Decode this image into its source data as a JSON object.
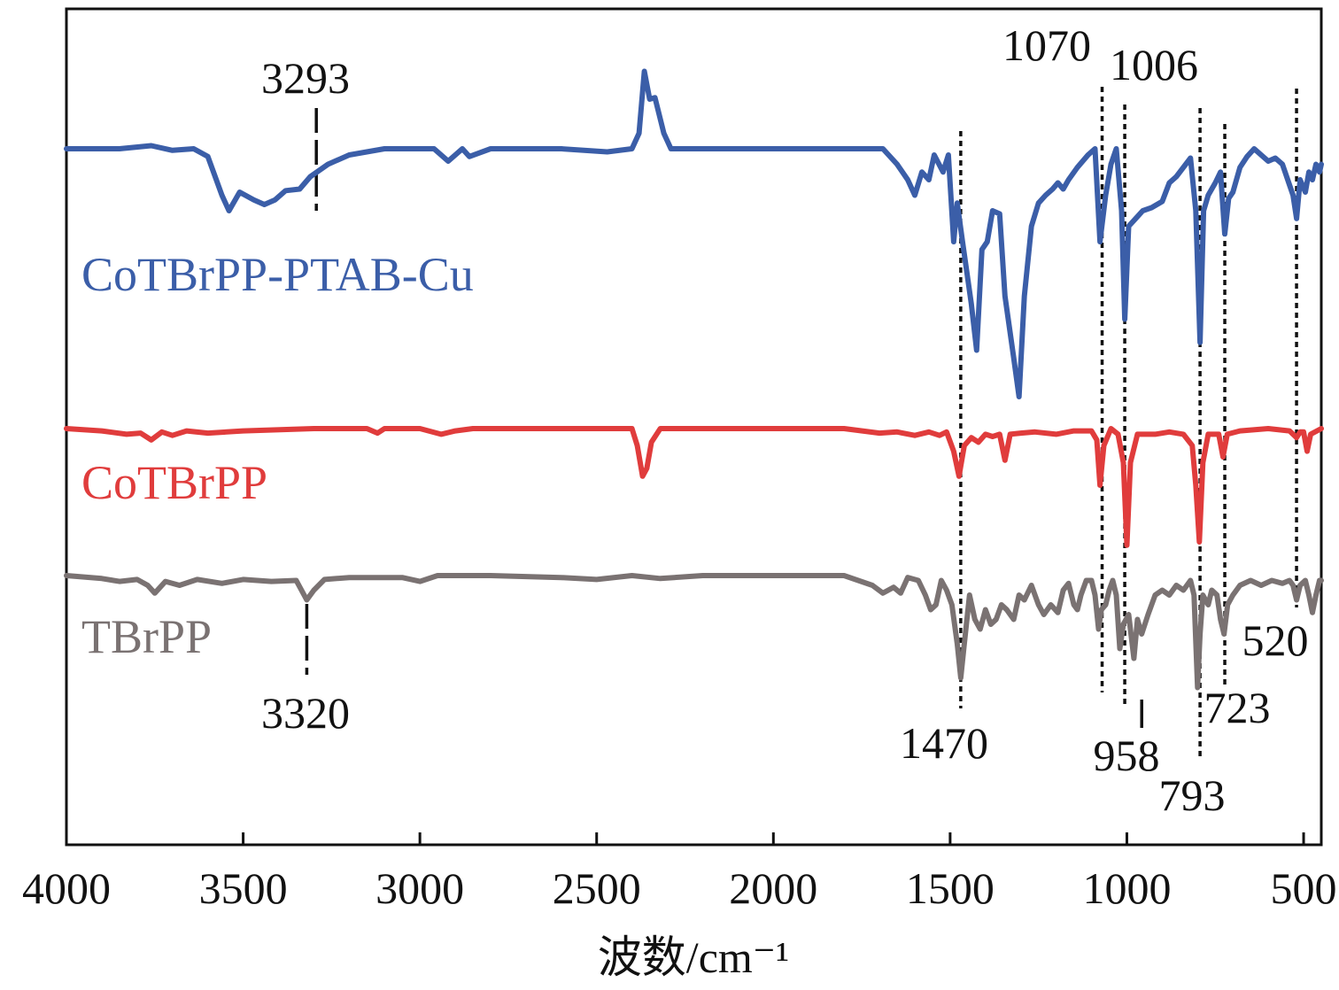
{
  "chart_data": {
    "type": "line",
    "xlabel": "波数/cm⁻¹",
    "xlim": [
      4000,
      450
    ],
    "x_ticks": [
      4000,
      3500,
      3000,
      2500,
      2000,
      1500,
      1000,
      500
    ],
    "x_tick_labels": [
      "4000",
      "3500",
      "3000",
      "2500",
      "2000",
      "1500",
      "1000",
      "500"
    ],
    "y_ticks_shown": false,
    "series": [
      {
        "name": "CoTBrPP-PTAB-Cu",
        "color": "#3b5ea8",
        "baseline": 0,
        "points": [
          [
            4000,
            0
          ],
          [
            3850,
            0
          ],
          [
            3760,
            0.02
          ],
          [
            3700,
            -0.01
          ],
          [
            3640,
            0
          ],
          [
            3600,
            -0.05
          ],
          [
            3560,
            -0.3
          ],
          [
            3540,
            -0.4
          ],
          [
            3510,
            -0.28
          ],
          [
            3470,
            -0.33
          ],
          [
            3440,
            -0.36
          ],
          [
            3410,
            -0.33
          ],
          [
            3380,
            -0.27
          ],
          [
            3340,
            -0.26
          ],
          [
            3310,
            -0.18
          ],
          [
            3260,
            -0.1
          ],
          [
            3200,
            -0.04
          ],
          [
            3100,
            0
          ],
          [
            2960,
            0
          ],
          [
            2920,
            -0.08
          ],
          [
            2880,
            0
          ],
          [
            2860,
            -0.05
          ],
          [
            2800,
            0
          ],
          [
            2700,
            0
          ],
          [
            2600,
            0
          ],
          [
            2470,
            -0.02
          ],
          [
            2400,
            0
          ],
          [
            2380,
            0.1
          ],
          [
            2365,
            0.5
          ],
          [
            2350,
            0.32
          ],
          [
            2335,
            0.33
          ],
          [
            2310,
            0.1
          ],
          [
            2290,
            0
          ],
          [
            2200,
            0
          ],
          [
            2000,
            0
          ],
          [
            1850,
            0
          ],
          [
            1720,
            0
          ],
          [
            1690,
            0
          ],
          [
            1650,
            -0.1
          ],
          [
            1620,
            -0.2
          ],
          [
            1600,
            -0.3
          ],
          [
            1580,
            -0.15
          ],
          [
            1560,
            -0.2
          ],
          [
            1545,
            -0.04
          ],
          [
            1520,
            -0.15
          ],
          [
            1505,
            -0.04
          ],
          [
            1490,
            -0.6
          ],
          [
            1480,
            -0.35
          ],
          [
            1465,
            -0.6
          ],
          [
            1440,
            -1.0
          ],
          [
            1425,
            -1.3
          ],
          [
            1410,
            -0.65
          ],
          [
            1395,
            -0.6
          ],
          [
            1380,
            -0.4
          ],
          [
            1360,
            -0.42
          ],
          [
            1345,
            -0.95
          ],
          [
            1320,
            -1.35
          ],
          [
            1305,
            -1.6
          ],
          [
            1290,
            -0.95
          ],
          [
            1270,
            -0.5
          ],
          [
            1250,
            -0.35
          ],
          [
            1230,
            -0.3
          ],
          [
            1210,
            -0.26
          ],
          [
            1195,
            -0.22
          ],
          [
            1180,
            -0.26
          ],
          [
            1165,
            -0.2
          ],
          [
            1140,
            -0.12
          ],
          [
            1110,
            -0.04
          ],
          [
            1090,
            0
          ],
          [
            1076,
            -0.6
          ],
          [
            1060,
            -0.3
          ],
          [
            1045,
            -0.1
          ],
          [
            1030,
            0
          ],
          [
            1015,
            -0.4
          ],
          [
            1006,
            -1.1
          ],
          [
            995,
            -0.5
          ],
          [
            975,
            -0.45
          ],
          [
            955,
            -0.4
          ],
          [
            930,
            -0.38
          ],
          [
            900,
            -0.34
          ],
          [
            880,
            -0.22
          ],
          [
            860,
            -0.18
          ],
          [
            840,
            -0.12
          ],
          [
            820,
            -0.06
          ],
          [
            805,
            -0.4
          ],
          [
            793,
            -1.25
          ],
          [
            783,
            -0.4
          ],
          [
            770,
            -0.3
          ],
          [
            750,
            -0.22
          ],
          [
            735,
            -0.15
          ],
          [
            723,
            -0.55
          ],
          [
            712,
            -0.32
          ],
          [
            700,
            -0.28
          ],
          [
            680,
            -0.12
          ],
          [
            660,
            -0.05
          ],
          [
            640,
            0
          ],
          [
            620,
            -0.04
          ],
          [
            600,
            -0.08
          ],
          [
            580,
            -0.06
          ],
          [
            560,
            -0.1
          ],
          [
            545,
            -0.2
          ],
          [
            530,
            -0.3
          ],
          [
            520,
            -0.45
          ],
          [
            510,
            -0.2
          ],
          [
            495,
            -0.28
          ],
          [
            485,
            -0.15
          ],
          [
            475,
            -0.2
          ],
          [
            465,
            -0.1
          ],
          [
            455,
            -0.15
          ],
          [
            450,
            -0.1
          ]
        ]
      },
      {
        "name": "CoTBrPP",
        "color": "#e03c3c",
        "baseline": 0,
        "points": [
          [
            4000,
            0
          ],
          [
            3900,
            -0.02
          ],
          [
            3830,
            -0.05
          ],
          [
            3790,
            -0.04
          ],
          [
            3760,
            -0.1
          ],
          [
            3730,
            -0.03
          ],
          [
            3700,
            -0.06
          ],
          [
            3660,
            -0.02
          ],
          [
            3600,
            -0.04
          ],
          [
            3500,
            -0.02
          ],
          [
            3300,
            0
          ],
          [
            3150,
            0
          ],
          [
            3120,
            -0.04
          ],
          [
            3100,
            0
          ],
          [
            3000,
            0
          ],
          [
            2940,
            -0.05
          ],
          [
            2900,
            -0.02
          ],
          [
            2850,
            0
          ],
          [
            2500,
            0
          ],
          [
            2400,
            0
          ],
          [
            2385,
            -0.15
          ],
          [
            2370,
            -0.42
          ],
          [
            2358,
            -0.35
          ],
          [
            2345,
            -0.12
          ],
          [
            2320,
            0
          ],
          [
            2000,
            0
          ],
          [
            1800,
            0
          ],
          [
            1700,
            -0.04
          ],
          [
            1650,
            -0.03
          ],
          [
            1600,
            -0.06
          ],
          [
            1560,
            -0.03
          ],
          [
            1530,
            -0.06
          ],
          [
            1510,
            -0.03
          ],
          [
            1490,
            -0.2
          ],
          [
            1475,
            -0.42
          ],
          [
            1460,
            -0.15
          ],
          [
            1440,
            -0.08
          ],
          [
            1420,
            -0.12
          ],
          [
            1400,
            -0.05
          ],
          [
            1380,
            -0.07
          ],
          [
            1360,
            -0.05
          ],
          [
            1345,
            -0.28
          ],
          [
            1330,
            -0.05
          ],
          [
            1300,
            -0.04
          ],
          [
            1260,
            -0.03
          ],
          [
            1200,
            -0.05
          ],
          [
            1150,
            -0.02
          ],
          [
            1100,
            -0.02
          ],
          [
            1085,
            -0.1
          ],
          [
            1076,
            -0.5
          ],
          [
            1065,
            -0.15
          ],
          [
            1045,
            0
          ],
          [
            1025,
            -0.05
          ],
          [
            1010,
            -0.3
          ],
          [
            1000,
            -1.03
          ],
          [
            990,
            -0.3
          ],
          [
            970,
            -0.05
          ],
          [
            920,
            -0.05
          ],
          [
            880,
            -0.03
          ],
          [
            840,
            -0.05
          ],
          [
            815,
            -0.15
          ],
          [
            805,
            -0.5
          ],
          [
            795,
            -1.0
          ],
          [
            785,
            -0.3
          ],
          [
            770,
            -0.05
          ],
          [
            740,
            -0.05
          ],
          [
            728,
            -0.25
          ],
          [
            716,
            -0.05
          ],
          [
            680,
            -0.02
          ],
          [
            600,
            0
          ],
          [
            540,
            -0.02
          ],
          [
            520,
            -0.08
          ],
          [
            510,
            -0.03
          ],
          [
            500,
            -0.03
          ],
          [
            490,
            -0.2
          ],
          [
            480,
            -0.05
          ],
          [
            450,
            0
          ]
        ]
      },
      {
        "name": "TBrPP",
        "color": "#7a7272",
        "baseline": 0,
        "points": [
          [
            4000,
            0
          ],
          [
            3900,
            -0.03
          ],
          [
            3850,
            -0.06
          ],
          [
            3800,
            -0.04
          ],
          [
            3770,
            -0.1
          ],
          [
            3750,
            -0.18
          ],
          [
            3720,
            -0.06
          ],
          [
            3680,
            -0.1
          ],
          [
            3630,
            -0.04
          ],
          [
            3560,
            -0.08
          ],
          [
            3500,
            -0.04
          ],
          [
            3420,
            -0.06
          ],
          [
            3350,
            -0.05
          ],
          [
            3320,
            -0.25
          ],
          [
            3300,
            -0.15
          ],
          [
            3270,
            -0.04
          ],
          [
            3200,
            -0.02
          ],
          [
            3050,
            -0.02
          ],
          [
            3000,
            -0.06
          ],
          [
            2950,
            0
          ],
          [
            2800,
            0
          ],
          [
            2600,
            -0.02
          ],
          [
            2500,
            -0.04
          ],
          [
            2400,
            0
          ],
          [
            2320,
            -0.03
          ],
          [
            2200,
            0
          ],
          [
            2000,
            0
          ],
          [
            1800,
            0
          ],
          [
            1720,
            -0.1
          ],
          [
            1690,
            -0.18
          ],
          [
            1660,
            -0.12
          ],
          [
            1640,
            -0.18
          ],
          [
            1620,
            -0.02
          ],
          [
            1590,
            -0.05
          ],
          [
            1570,
            -0.2
          ],
          [
            1555,
            -0.35
          ],
          [
            1540,
            -0.3
          ],
          [
            1525,
            -0.05
          ],
          [
            1510,
            -0.15
          ],
          [
            1495,
            -0.3
          ],
          [
            1480,
            -0.7
          ],
          [
            1470,
            -1.05
          ],
          [
            1460,
            -0.7
          ],
          [
            1445,
            -0.2
          ],
          [
            1430,
            -0.45
          ],
          [
            1415,
            -0.55
          ],
          [
            1400,
            -0.35
          ],
          [
            1385,
            -0.5
          ],
          [
            1370,
            -0.45
          ],
          [
            1355,
            -0.3
          ],
          [
            1340,
            -0.35
          ],
          [
            1320,
            -0.45
          ],
          [
            1305,
            -0.2
          ],
          [
            1290,
            -0.25
          ],
          [
            1270,
            -0.1
          ],
          [
            1250,
            -0.3
          ],
          [
            1235,
            -0.4
          ],
          [
            1215,
            -0.3
          ],
          [
            1195,
            -0.38
          ],
          [
            1180,
            -0.15
          ],
          [
            1165,
            -0.08
          ],
          [
            1150,
            -0.3
          ],
          [
            1140,
            -0.35
          ],
          [
            1130,
            -0.2
          ],
          [
            1115,
            -0.05
          ],
          [
            1100,
            -0.05
          ],
          [
            1090,
            -0.2
          ],
          [
            1080,
            -0.55
          ],
          [
            1072,
            -0.35
          ],
          [
            1060,
            -0.3
          ],
          [
            1050,
            -0.15
          ],
          [
            1040,
            -0.05
          ],
          [
            1030,
            -0.2
          ],
          [
            1020,
            -0.75
          ],
          [
            1010,
            -0.5
          ],
          [
            995,
            -0.4
          ],
          [
            980,
            -0.85
          ],
          [
            970,
            -0.45
          ],
          [
            958,
            -0.6
          ],
          [
            940,
            -0.4
          ],
          [
            920,
            -0.2
          ],
          [
            900,
            -0.15
          ],
          [
            880,
            -0.2
          ],
          [
            860,
            -0.1
          ],
          [
            840,
            -0.15
          ],
          [
            820,
            -0.05
          ],
          [
            810,
            -0.2
          ],
          [
            800,
            -1.15
          ],
          [
            793,
            -0.6
          ],
          [
            785,
            -0.2
          ],
          [
            770,
            -0.3
          ],
          [
            760,
            -0.15
          ],
          [
            745,
            -0.2
          ],
          [
            735,
            -0.45
          ],
          [
            725,
            -0.6
          ],
          [
            715,
            -0.3
          ],
          [
            700,
            -0.2
          ],
          [
            680,
            -0.1
          ],
          [
            650,
            -0.05
          ],
          [
            620,
            -0.1
          ],
          [
            590,
            -0.05
          ],
          [
            560,
            -0.08
          ],
          [
            540,
            -0.05
          ],
          [
            530,
            -0.1
          ],
          [
            520,
            -0.25
          ],
          [
            510,
            -0.1
          ],
          [
            495,
            -0.05
          ],
          [
            485,
            -0.2
          ],
          [
            475,
            -0.38
          ],
          [
            465,
            -0.2
          ],
          [
            455,
            -0.05
          ],
          [
            450,
            -0.05
          ]
        ]
      }
    ],
    "annotations": [
      {
        "label": "3293",
        "x": 3293,
        "series": "CoTBrPP-PTAB-Cu",
        "style": "dashed",
        "text_position": "above"
      },
      {
        "label": "3320",
        "x": 3320,
        "series": "TBrPP",
        "style": "dashed",
        "text_position": "below"
      },
      {
        "label": "1470",
        "x": 1470,
        "style": "dotted",
        "text_position": "below"
      },
      {
        "label": "1070",
        "x": 1070,
        "style": "dotted",
        "text_position": "above"
      },
      {
        "label": "1006",
        "x": 1006,
        "style": "dotted",
        "text_position": "above"
      },
      {
        "label": "958",
        "x": 958,
        "series": "TBrPP",
        "style": "solid",
        "text_position": "below"
      },
      {
        "label": "793",
        "x": 793,
        "style": "dotted",
        "text_position": "below"
      },
      {
        "label": "723",
        "x": 723,
        "style": "dotted",
        "text_position": "below"
      },
      {
        "label": "520",
        "x": 520,
        "style": "dotted",
        "text_position": "below"
      }
    ]
  }
}
